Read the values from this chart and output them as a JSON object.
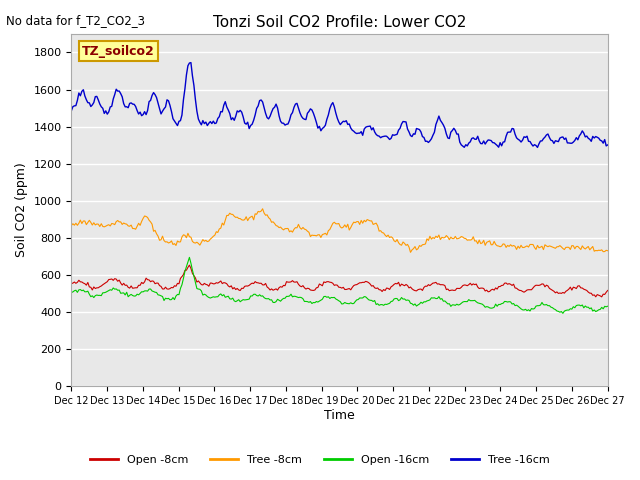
{
  "title": "Tonzi Soil CO2 Profile: Lower CO2",
  "no_data_text": "No data for f_T2_CO2_3",
  "ylabel": "Soil CO2 (ppm)",
  "xlabel": "Time",
  "ylim": [
    0,
    1900
  ],
  "yticks": [
    0,
    200,
    400,
    600,
    800,
    1000,
    1200,
    1400,
    1600,
    1800
  ],
  "xtick_labels": [
    "Dec 12",
    "Dec 13",
    "Dec 14",
    "Dec 15",
    "Dec 16",
    "Dec 17",
    "Dec 18",
    "Dec 19",
    "Dec 20",
    "Dec 21",
    "Dec 22",
    "Dec 23",
    "Dec 24",
    "Dec 25",
    "Dec 26",
    "Dec 27"
  ],
  "legend_entries": [
    "Open -8cm",
    "Tree -8cm",
    "Open -16cm",
    "Tree -16cm"
  ],
  "legend_colors": [
    "#cc0000",
    "#ff9900",
    "#00cc00",
    "#0000cc"
  ],
  "bg_color": "#e8e8e8",
  "grid_color": "#ffffff",
  "legend_box_color": "#ffff99",
  "legend_box_edge": "#cc9900",
  "legend_box_text": "TZ_soilco2",
  "series_colors": {
    "open_8cm": "#cc0000",
    "tree_8cm": "#ff9900",
    "open_16cm": "#00cc00",
    "tree_16cm": "#0000cc"
  }
}
